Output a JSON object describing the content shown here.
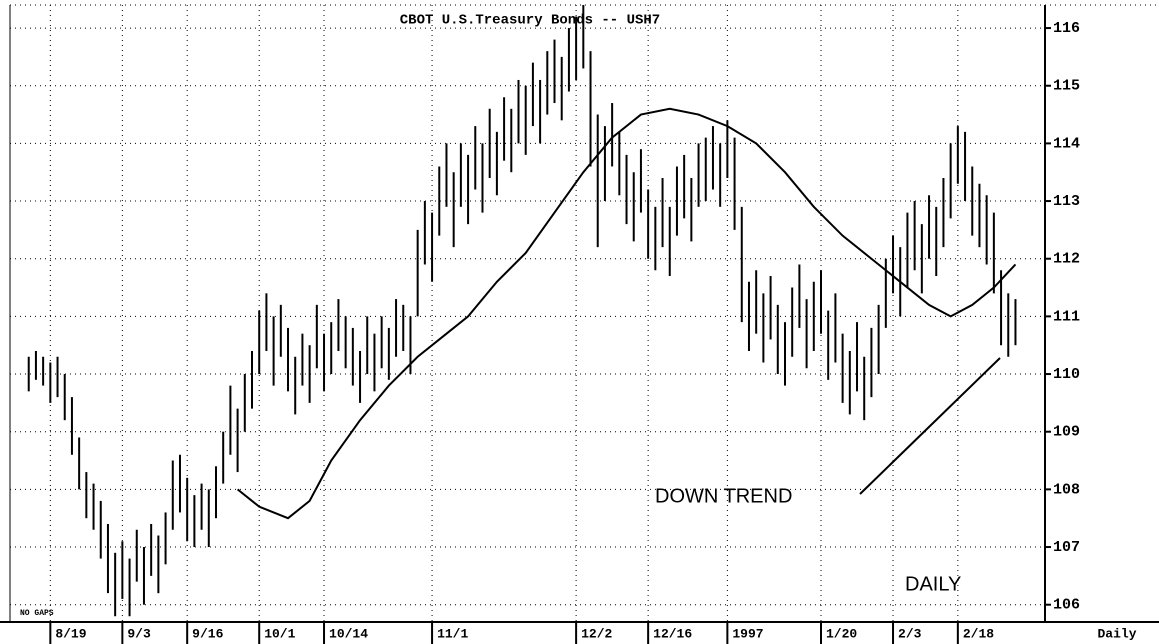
{
  "chart_data": {
    "type": "ohlc",
    "title": "CBOT U.S.Treasury Bonds -- USH7",
    "x_axis_label": "Daily",
    "annotations": [
      "DOWN TREND",
      "DAILY",
      "NO GAPS"
    ],
    "x": [
      -3,
      -2,
      -1,
      0,
      1,
      2,
      3,
      4,
      5,
      6,
      7,
      8,
      9,
      10,
      11,
      12,
      13,
      14,
      15,
      16,
      17,
      18,
      19,
      20,
      21,
      22,
      23,
      24,
      25,
      26,
      27,
      28,
      29,
      30,
      31,
      32,
      33,
      34,
      35,
      36,
      37,
      38,
      39,
      40,
      41,
      42,
      43,
      44,
      45,
      46,
      47,
      48,
      49,
      50,
      51,
      52,
      53,
      54,
      55,
      56,
      57,
      58,
      59,
      60,
      61,
      62,
      63,
      64,
      65,
      66,
      67,
      68,
      69,
      70,
      71,
      72,
      73,
      74,
      75,
      76,
      77,
      78,
      79,
      80,
      81,
      82,
      83,
      84,
      85,
      86,
      87,
      88,
      89,
      90,
      91,
      92,
      93,
      94,
      95,
      96,
      97,
      98,
      99,
      100,
      101,
      102,
      103,
      104,
      105,
      106,
      107,
      108,
      109,
      110,
      111,
      112,
      113,
      114,
      115,
      116,
      117,
      118,
      119,
      120,
      121,
      122,
      123,
      124,
      125,
      126,
      127,
      128,
      129,
      130,
      131,
      132,
      133,
      134
    ],
    "series": [
      {
        "type": "range",
        "color": "#000000",
        "high": [
          110.3,
          110.4,
          110.3,
          110.2,
          110.3,
          110.0,
          109.6,
          108.9,
          108.3,
          108.1,
          107.8,
          107.4,
          106.9,
          107.1,
          106.8,
          107.3,
          107.0,
          107.4,
          107.2,
          107.6,
          108.5,
          108.6,
          108.2,
          107.9,
          108.1,
          108.0,
          108.4,
          109.0,
          109.8,
          109.4,
          110.0,
          110.4,
          111.1,
          111.4,
          111.0,
          111.2,
          110.8,
          110.3,
          110.7,
          110.5,
          111.2,
          110.7,
          110.9,
          111.3,
          111.0,
          110.8,
          110.4,
          111.0,
          110.7,
          111.0,
          110.8,
          111.3,
          111.2,
          111.0,
          112.5,
          113.0,
          112.8,
          113.6,
          114.0,
          113.5,
          114.0,
          113.8,
          114.3,
          114.0,
          114.6,
          114.2,
          114.8,
          114.6,
          115.1,
          115.0,
          115.4,
          115.1,
          115.6,
          115.8,
          115.5,
          116.0,
          116.2,
          116.4,
          115.6,
          114.5,
          114.3,
          114.7,
          114.2,
          113.8,
          113.5,
          113.9,
          113.2,
          112.9,
          113.4,
          112.9,
          113.6,
          113.8,
          113.4,
          114.0,
          114.1,
          114.3,
          114.0,
          114.4,
          114.1,
          112.9,
          111.6,
          111.8,
          111.4,
          111.7,
          111.2,
          110.9,
          111.5,
          111.9,
          111.3,
          111.6,
          111.8,
          111.1,
          111.4,
          110.7,
          110.4,
          110.9,
          110.3,
          110.8,
          111.2,
          112.0,
          112.4,
          112.2,
          112.8,
          113.0,
          112.6,
          113.1,
          112.9,
          113.4,
          114.0,
          114.3,
          114.2,
          113.6,
          113.3,
          113.1,
          112.8,
          111.8,
          111.4,
          111.3
        ],
        "low": [
          109.7,
          109.9,
          109.8,
          109.5,
          109.6,
          109.2,
          108.6,
          108.0,
          107.5,
          107.3,
          106.8,
          106.2,
          105.8,
          106.1,
          105.8,
          106.4,
          106.0,
          106.5,
          106.2,
          106.7,
          107.3,
          107.6,
          107.1,
          107.0,
          107.3,
          107.0,
          107.5,
          108.1,
          108.6,
          108.3,
          109.0,
          109.4,
          110.0,
          110.4,
          109.8,
          110.3,
          109.7,
          109.3,
          109.8,
          109.5,
          110.1,
          109.7,
          110.0,
          110.4,
          110.1,
          109.8,
          109.5,
          110.0,
          109.7,
          110.1,
          109.9,
          110.3,
          110.4,
          110.0,
          111.0,
          111.9,
          111.6,
          112.4,
          112.9,
          112.2,
          112.9,
          112.6,
          113.2,
          112.8,
          113.4,
          113.1,
          113.7,
          113.5,
          114.0,
          113.8,
          114.3,
          114.0,
          114.5,
          114.7,
          114.4,
          114.9,
          115.1,
          115.3,
          113.6,
          112.2,
          113.0,
          113.6,
          113.1,
          112.6,
          112.3,
          112.8,
          112.0,
          111.8,
          112.2,
          111.7,
          112.4,
          112.7,
          112.3,
          112.9,
          113.0,
          113.2,
          112.9,
          113.4,
          112.5,
          110.9,
          110.4,
          110.7,
          110.2,
          110.6,
          110.0,
          109.8,
          110.3,
          110.8,
          110.1,
          110.4,
          110.7,
          109.9,
          110.2,
          109.5,
          109.3,
          109.7,
          109.2,
          109.6,
          110.0,
          110.8,
          111.4,
          111.0,
          111.5,
          111.8,
          111.4,
          112.0,
          111.7,
          112.2,
          112.7,
          113.3,
          113.0,
          112.4,
          112.2,
          111.9,
          111.4,
          110.5,
          110.3,
          110.5
        ]
      },
      {
        "type": "line",
        "color": "#000000",
        "x": [
          26,
          29,
          33,
          36,
          39,
          43,
          47,
          51,
          55,
          58,
          62,
          66,
          70,
          74,
          78,
          82,
          86,
          90,
          94,
          98,
          102,
          106,
          110,
          114,
          118,
          122,
          125,
          128,
          131,
          134
        ],
        "values": [
          108.0,
          107.7,
          107.5,
          107.8,
          108.5,
          109.2,
          109.8,
          110.3,
          110.7,
          111.0,
          111.6,
          112.1,
          112.8,
          113.5,
          114.1,
          114.5,
          114.6,
          114.5,
          114.3,
          114.0,
          113.5,
          112.9,
          112.4,
          112.0,
          111.6,
          111.2,
          111.0,
          111.2,
          111.5,
          111.9
        ]
      }
    ],
    "xlim": [
      -5.6,
      138.1
    ],
    "xticks": [
      {
        "value": 0,
        "label": "8/19"
      },
      {
        "value": 10,
        "label": "9/3"
      },
      {
        "value": 19,
        "label": "9/16"
      },
      {
        "value": 29,
        "label": "10/1"
      },
      {
        "value": 38,
        "label": "10/14"
      },
      {
        "value": 53,
        "label": "11/1"
      },
      {
        "value": 73,
        "label": "12/2"
      },
      {
        "value": 83,
        "label": "12/16"
      },
      {
        "value": 94,
        "label": "1997"
      },
      {
        "value": 107,
        "label": "1/20"
      },
      {
        "value": 117,
        "label": "2/3"
      },
      {
        "value": 126,
        "label": "2/18"
      }
    ],
    "ylim": [
      105.7,
      116.4
    ],
    "yticks": [
      106,
      107,
      108,
      109,
      110,
      111,
      112,
      113,
      114,
      115,
      116
    ],
    "grid": true
  }
}
